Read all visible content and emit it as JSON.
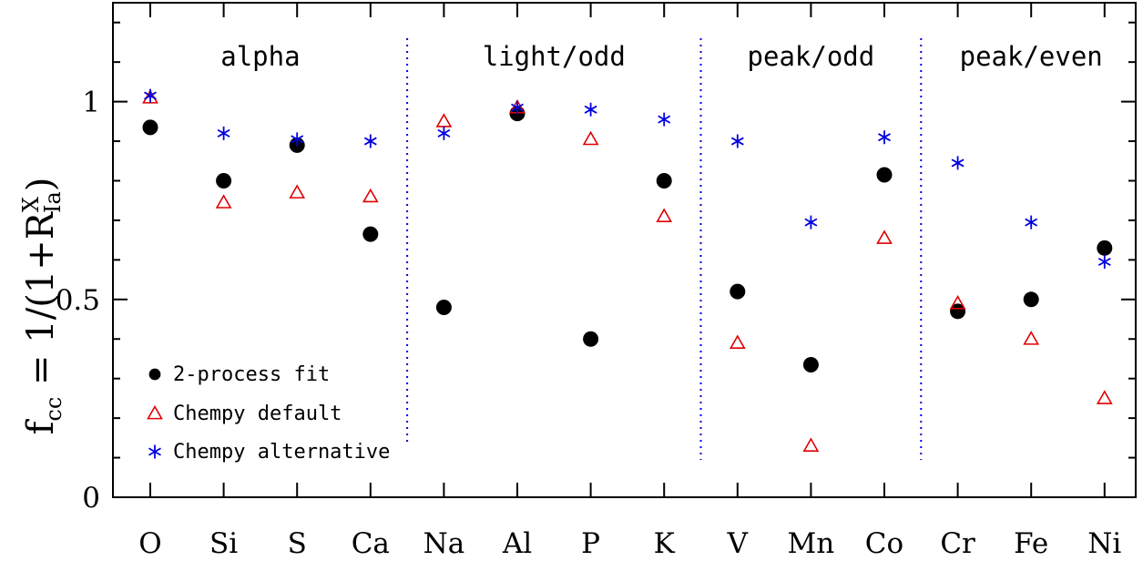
{
  "chart_data": {
    "type": "scatter",
    "title": "",
    "xlabel": "",
    "ylabel": {
      "prefix": "f",
      "prefix_sub": "cc",
      "middle": " = 1/(1+R",
      "sup": "X",
      "sub": "Ia",
      "suffix": ")"
    },
    "ylim": [
      0,
      1.25
    ],
    "y_ticks": [
      0,
      0.5,
      1
    ],
    "y_tick_labels": [
      "0",
      "0.5",
      "1"
    ],
    "categories": [
      "O",
      "Si",
      "S",
      "Ca",
      "Na",
      "Al",
      "P",
      "K",
      "V",
      "Mn",
      "Co",
      "Cr",
      "Fe",
      "Ni"
    ],
    "groups": [
      {
        "label": "alpha",
        "start": 0,
        "end": 3
      },
      {
        "label": "light/odd",
        "start": 4,
        "end": 7
      },
      {
        "label": "peak/odd",
        "start": 8,
        "end": 10
      },
      {
        "label": "peak/even",
        "start": 11,
        "end": 13
      }
    ],
    "separators": [
      3.5,
      7.5,
      10.5
    ],
    "series": [
      {
        "name": "2-process fit",
        "marker": "circle",
        "color": "#000000",
        "values": [
          0.935,
          0.8,
          0.89,
          0.665,
          0.48,
          0.97,
          0.4,
          0.8,
          0.52,
          0.335,
          0.815,
          0.47,
          0.5,
          0.63
        ]
      },
      {
        "name": "Chempy default",
        "marker": "triangle",
        "color": "#e00000",
        "values": [
          1.01,
          0.745,
          0.77,
          0.76,
          0.95,
          0.985,
          0.905,
          0.71,
          0.39,
          0.13,
          0.655,
          0.49,
          0.4,
          0.25
        ]
      },
      {
        "name": "Chempy alternative",
        "marker": "asterisk",
        "color": "#0000e0",
        "values": [
          1.015,
          0.92,
          0.905,
          0.9,
          0.92,
          0.985,
          0.98,
          0.955,
          0.9,
          0.695,
          0.91,
          0.845,
          0.695,
          0.595
        ]
      }
    ],
    "legend_position": "bottom-left",
    "grid": false
  }
}
